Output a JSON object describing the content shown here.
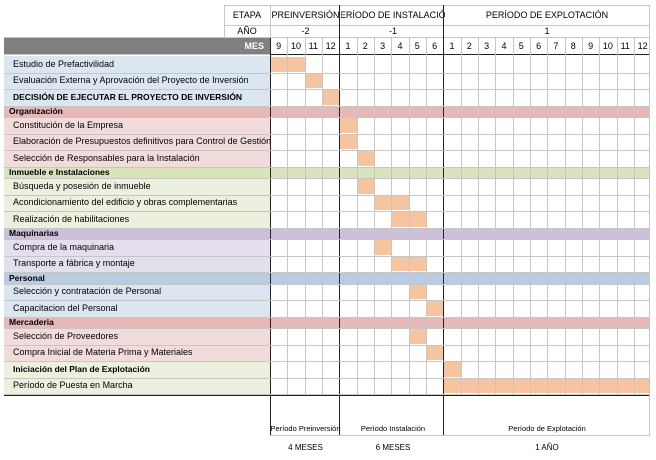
{
  "header": {
    "etapa_label": "ETAPA",
    "ano_label": "AÑO",
    "mes_label": "MES",
    "phases": [
      {
        "name": "PREINVERSIÓN",
        "year": "-2",
        "months": [
          "9",
          "10",
          "11",
          "12"
        ]
      },
      {
        "name": "PERÍODO DE INSTALACIÓN",
        "year": "-1",
        "months": [
          "1",
          "2",
          "3",
          "4",
          "5",
          "6"
        ]
      },
      {
        "name": "PERÍODO DE EXPLOTACIÓN",
        "year": "1",
        "months": [
          "1",
          "2",
          "3",
          "4",
          "5",
          "6",
          "7",
          "8",
          "9",
          "10",
          "11",
          "12"
        ]
      }
    ]
  },
  "colors": {
    "bar": "#f7c4a0",
    "header_band": "#808080",
    "blue": "#dce6f1",
    "red": "#f2dcdb",
    "green": "#ebf1de",
    "purple": "#e4dfec",
    "red_group": "#e6b8b7",
    "green_group": "#d8e4bc",
    "purple_group": "#ccc0da",
    "blue_group": "#b8cce4"
  },
  "rows": [
    {
      "label": "Estudio de Prefactivilidad",
      "kind": "task",
      "color": "blue",
      "bar": [
        0,
        2
      ]
    },
    {
      "label": "Evaluación Externa y Aprovación del Proyecto de Inversión",
      "kind": "task",
      "color": "blue",
      "bar": [
        2,
        1
      ]
    },
    {
      "label": "DECISIÓN DE EJECUTAR EL PROYECTO DE INVERSIÓN",
      "kind": "milestone",
      "color": "blue",
      "bar": [
        3,
        1
      ]
    },
    {
      "label": "Organización",
      "kind": "group",
      "color": "red_group"
    },
    {
      "label": "Constitución de la Empresa",
      "kind": "task",
      "color": "red",
      "bar": [
        4,
        1
      ]
    },
    {
      "label": "Elaboración de Presupuestos definitivos para Control de Gestión",
      "kind": "task",
      "color": "red",
      "bar": [
        4,
        1
      ]
    },
    {
      "label": "Selección de Responsables para la Instalación",
      "kind": "task",
      "color": "red",
      "bar": [
        5,
        1
      ]
    },
    {
      "label": "Inmueble e Instalaciones",
      "kind": "group",
      "color": "green_group"
    },
    {
      "label": "Búsqueda y posesión de inmueble",
      "kind": "task",
      "color": "green",
      "bar": [
        5,
        1
      ]
    },
    {
      "label": "Acondicionamiento del edificio y obras complementarias",
      "kind": "task",
      "color": "green",
      "bar": [
        6,
        2
      ]
    },
    {
      "label": "Realización de habilitaciones",
      "kind": "task",
      "color": "green",
      "bar": [
        7,
        2
      ]
    },
    {
      "label": "Maquinarias",
      "kind": "group",
      "color": "purple_group"
    },
    {
      "label": "Compra de la maquinaria",
      "kind": "task",
      "color": "purple",
      "bar": [
        6,
        1
      ]
    },
    {
      "label": "Transporte a fábrica y montaje",
      "kind": "task",
      "color": "purple",
      "bar": [
        7,
        2
      ]
    },
    {
      "label": "Personal",
      "kind": "group",
      "color": "blue_group"
    },
    {
      "label": "Selección y contratación de Personal",
      "kind": "task",
      "color": "blue",
      "bar": [
        8,
        1
      ]
    },
    {
      "label": "Capacitacion del Personal",
      "kind": "task",
      "color": "blue",
      "bar": [
        9,
        1
      ]
    },
    {
      "label": "Mercaderia",
      "kind": "group",
      "color": "red_group"
    },
    {
      "label": "Selección de Proveedores",
      "kind": "task",
      "color": "red",
      "bar": [
        8,
        1
      ]
    },
    {
      "label": "Compra Inicial de Materia Prima y Materiales",
      "kind": "task",
      "color": "red",
      "bar": [
        9,
        1
      ]
    },
    {
      "label": "Iniciación del Plan de Explotación",
      "kind": "milestone",
      "color": "green",
      "bar": [
        10,
        1
      ]
    },
    {
      "label": "Período de Puesta en Marcha",
      "kind": "task",
      "color": "green",
      "bar": [
        10,
        12
      ]
    }
  ],
  "footer": [
    {
      "title": "Período Preinversión",
      "duration": "4 MESES"
    },
    {
      "title": "Período Instalación",
      "duration": "6 MESES"
    },
    {
      "title": "Período de Explotación",
      "duration": "1 AÑO"
    }
  ]
}
